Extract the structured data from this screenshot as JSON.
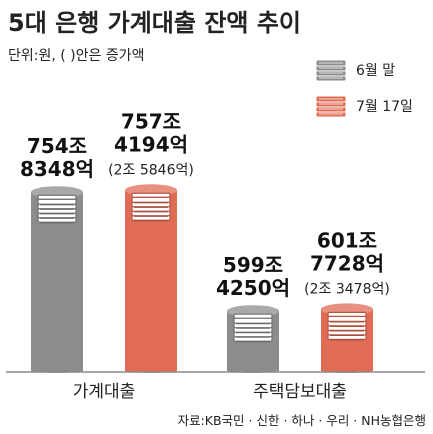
{
  "chart_data": {
    "type": "bar",
    "title": "5대 은행 가계대출 잔액 추이",
    "subtitle": "단위:원, (   )안은 증가액",
    "categories": [
      "가계대출",
      "주택담보대출"
    ],
    "series": [
      {
        "name": "6월 말",
        "color": "#8c8c8c",
        "values": [
          7548348,
          5994250
        ],
        "labels": [
          [
            "754조",
            "8348억"
          ],
          [
            "599조",
            "4250억"
          ]
        ],
        "increase_labels": [
          "",
          ""
        ]
      },
      {
        "name": "7월 17일",
        "color": "#e06c55",
        "values": [
          7574194,
          6017728
        ],
        "labels": [
          [
            "757조",
            "4194억"
          ],
          [
            "601조",
            "7728억"
          ]
        ],
        "increase_labels": [
          "(2조 5846억)",
          "(2조 3478억)"
        ]
      }
    ],
    "unit": "억원",
    "ylim": [
      5200000,
      8100000
    ],
    "legend_position": "top-right",
    "source": "자료:KB국민 · 신한 · 하나 · 우리 · NH농협은행"
  }
}
